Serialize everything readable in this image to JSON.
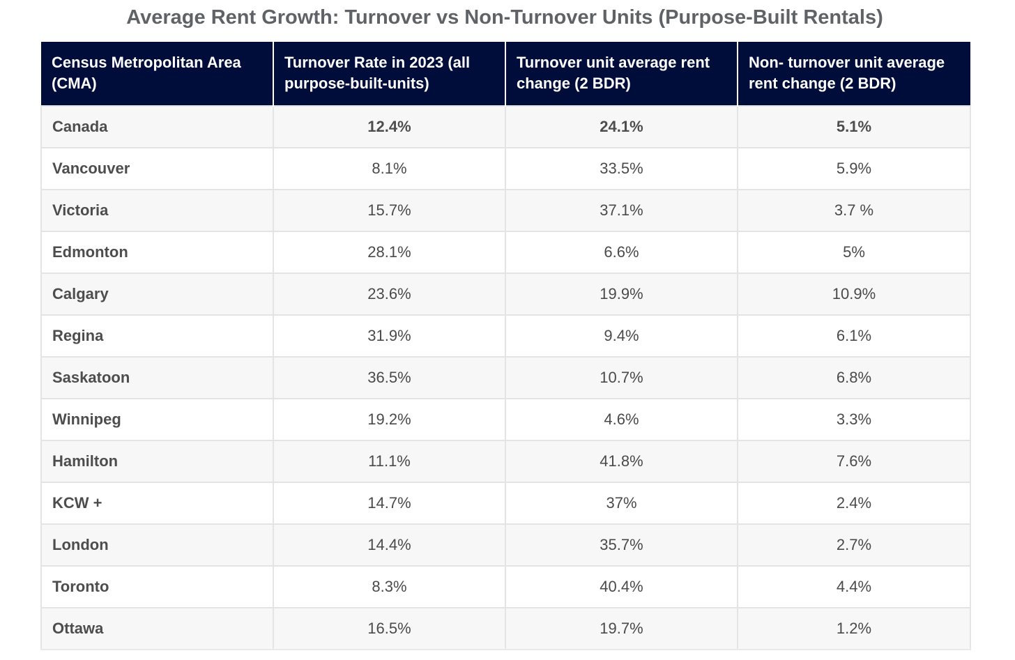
{
  "chart_data": {
    "type": "table",
    "title": "Average Rent Growth: Turnover vs Non-Turnover Units (Purpose-Built Rentals)",
    "columns": [
      "Census Metropolitan Area (CMA)",
      "Turnover Rate in 2023 (all purpose-built-units)",
      "Turnover unit average rent change (2 BDR)",
      "Non- turnover unit average rent change (2 BDR)"
    ],
    "rows": [
      {
        "cma": "Canada",
        "turnover_rate": "12.4%",
        "turnover_change": "24.1%",
        "non_turnover_change": "5.1%"
      },
      {
        "cma": "Vancouver",
        "turnover_rate": "8.1%",
        "turnover_change": "33.5%",
        "non_turnover_change": "5.9%"
      },
      {
        "cma": "Victoria",
        "turnover_rate": "15.7%",
        "turnover_change": "37.1%",
        "non_turnover_change": "3.7 %"
      },
      {
        "cma": "Edmonton",
        "turnover_rate": "28.1%",
        "turnover_change": "6.6%",
        "non_turnover_change": "5%"
      },
      {
        "cma": "Calgary",
        "turnover_rate": "23.6%",
        "turnover_change": "19.9%",
        "non_turnover_change": "10.9%"
      },
      {
        "cma": "Regina",
        "turnover_rate": "31.9%",
        "turnover_change": "9.4%",
        "non_turnover_change": "6.1%"
      },
      {
        "cma": "Saskatoon",
        "turnover_rate": "36.5%",
        "turnover_change": "10.7%",
        "non_turnover_change": "6.8%"
      },
      {
        "cma": "Winnipeg",
        "turnover_rate": "19.2%",
        "turnover_change": "4.6%",
        "non_turnover_change": "3.3%"
      },
      {
        "cma": "Hamilton",
        "turnover_rate": "11.1%",
        "turnover_change": "41.8%",
        "non_turnover_change": "7.6%"
      },
      {
        "cma": "KCW +",
        "turnover_rate": "14.7%",
        "turnover_change": "37%",
        "non_turnover_change": "2.4%"
      },
      {
        "cma": "London",
        "turnover_rate": "14.4%",
        "turnover_change": "35.7%",
        "non_turnover_change": "2.7%"
      },
      {
        "cma": "Toronto",
        "turnover_rate": "8.3%",
        "turnover_change": "40.4%",
        "non_turnover_change": "4.4%"
      },
      {
        "cma": "Ottawa",
        "turnover_rate": "16.5%",
        "turnover_change": "19.7%",
        "non_turnover_change": "1.2%"
      }
    ],
    "header_color": "#000c3a",
    "stripe_color": "#f7f7f7"
  }
}
